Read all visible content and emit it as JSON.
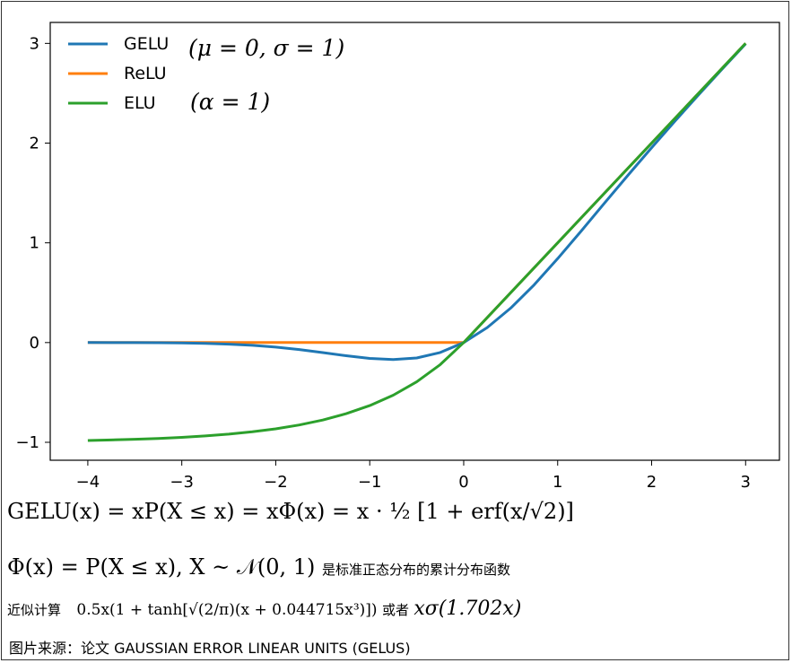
{
  "chart_data": {
    "type": "line",
    "xlim": [
      -4.4,
      3.36
    ],
    "ylim": [
      -1.18,
      3.21
    ],
    "x_ticks": [
      -4,
      -3,
      -2,
      -1,
      0,
      1,
      2,
      3
    ],
    "x_tick_labels": [
      "−4",
      "−3",
      "−2",
      "−1",
      "0",
      "1",
      "2",
      "3"
    ],
    "y_ticks": [
      -1,
      0,
      1,
      2,
      3
    ],
    "y_tick_labels": [
      "−1",
      "0",
      "1",
      "2",
      "3"
    ],
    "grid": false,
    "legend": "top-left",
    "series": [
      {
        "name": "GELU",
        "color": "#1f77b4",
        "x": [
          -4,
          -3.75,
          -3.5,
          -3.25,
          -3,
          -2.75,
          -2.5,
          -2.25,
          -2,
          -1.75,
          -1.5,
          -1.25,
          -1,
          -0.75,
          -0.5,
          -0.25,
          0,
          0.25,
          0.5,
          0.75,
          1,
          1.25,
          1.5,
          1.75,
          2,
          2.25,
          2.5,
          2.75,
          3
        ],
        "y": [
          -0.0001,
          -0.0003,
          -0.0008,
          -0.0019,
          -0.004,
          -0.0082,
          -0.0155,
          -0.0276,
          -0.0455,
          -0.0702,
          -0.1002,
          -0.132,
          -0.1587,
          -0.17,
          -0.1543,
          -0.0999,
          0,
          0.1501,
          0.3457,
          0.58,
          0.8413,
          1.118,
          1.3998,
          1.6798,
          1.9545,
          2.2224,
          2.4845,
          2.7418,
          2.996
        ]
      },
      {
        "name": "ReLU",
        "color": "#ff7f0e",
        "x": [
          -4,
          0,
          3
        ],
        "y": [
          0,
          0,
          3
        ]
      },
      {
        "name": "ELU",
        "color": "#2ca02c",
        "x": [
          -4,
          -3.75,
          -3.5,
          -3.25,
          -3,
          -2.75,
          -2.5,
          -2.25,
          -2,
          -1.75,
          -1.5,
          -1.25,
          -1,
          -0.75,
          -0.5,
          -0.25,
          0,
          3
        ],
        "y": [
          -0.9817,
          -0.9765,
          -0.9698,
          -0.9612,
          -0.9502,
          -0.9361,
          -0.9179,
          -0.8946,
          -0.8647,
          -0.8262,
          -0.7769,
          -0.7135,
          -0.6321,
          -0.5276,
          -0.3935,
          -0.2212,
          0,
          3
        ]
      }
    ],
    "legend_notes": {
      "gelu": "(μ = 0, σ = 1)",
      "elu": "(α = 1)"
    }
  },
  "formulas": {
    "gelu_def": "GELU(x) = xP(X ≤ x) = xΦ(x) = x · ½ [1 + erf(x/√2)]",
    "phi_def": "Φ(x) = P(X ≤ x), X ~ 𝒩(0, 1)",
    "phi_note": "是标准正态分布的累计分布函数",
    "approx_label": "近似计算",
    "approx_formula": "0.5x(1 + tanh[√(2/π)(x + 0.044715x³)])",
    "approx_or": "或者",
    "approx_alt": "xσ(1.702x)"
  },
  "source": "图片来源：论文 GAUSSIAN ERROR LINEAR UNITS (GELUS)"
}
